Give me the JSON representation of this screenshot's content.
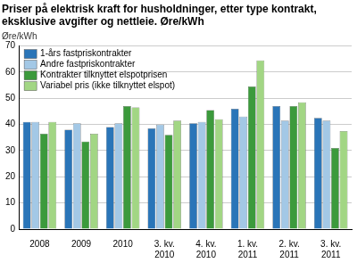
{
  "chart_data": {
    "type": "bar",
    "title": "Priser på elektrisk kraft for husholdninger, etter type kontrakt, eksklusive avgifter og nettleie. Øre/kWh",
    "y_label": "Øre/kWh",
    "categories": [
      "2008",
      "2009",
      "2010",
      "3. kv. 2010",
      "4. kv. 2010",
      "1. kv. 2011",
      "2. kv. 2011",
      "3. kv. 2011"
    ],
    "series": [
      {
        "name": "1-års fastpriskontrakter",
        "color": "#2a75b8",
        "values": [
          41,
          38,
          39,
          38.5,
          40.5,
          46,
          47,
          42.5
        ]
      },
      {
        "name": "Andre fastpriskontrakter",
        "color": "#a3c8e6",
        "values": [
          41,
          40.5,
          40.5,
          40,
          41,
          43,
          41.5,
          41.5
        ]
      },
      {
        "name": "Kontrakter tilknyttet elspotprisen",
        "color": "#3c9a3c",
        "values": [
          36.5,
          33.5,
          47,
          36,
          45.5,
          54.5,
          47,
          31
        ]
      },
      {
        "name": "Variabel pris (ikke tilknyttet elspot)",
        "color": "#a2d684",
        "values": [
          41,
          36.5,
          46.5,
          41.5,
          42,
          64.5,
          48.5,
          37.5
        ]
      }
    ],
    "ylim": [
      0,
      70
    ],
    "yticks": [
      0,
      10,
      20,
      30,
      40,
      50,
      60,
      70
    ],
    "grid": true,
    "legend": "upper left"
  }
}
